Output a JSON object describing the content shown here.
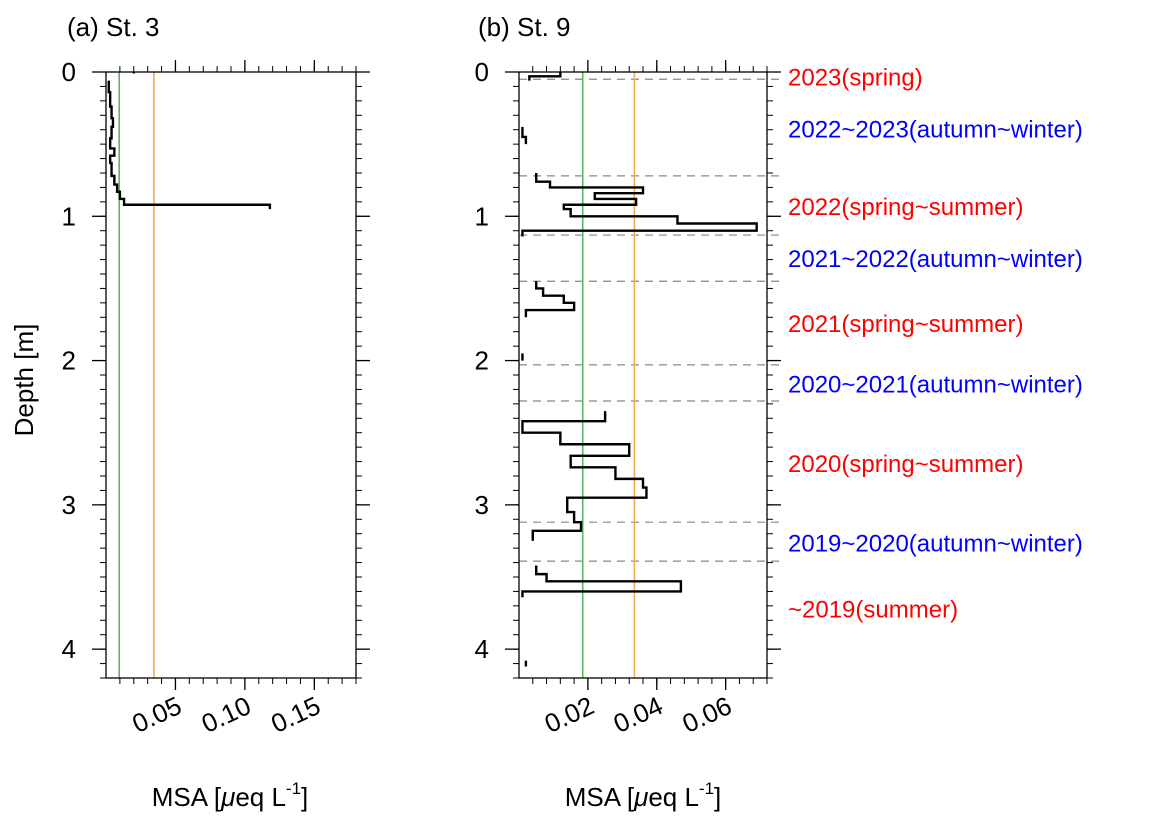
{
  "chart_data": [
    {
      "type": "line",
      "panel_title": "(a) St. 3",
      "xlabel_main": "MSA [",
      "xlabel_mu": "μ",
      "xlabel_eq": "eq L",
      "xlabel_sup": "-1",
      "xlabel_end": "]",
      "ylabel": "Depth [m]",
      "xlim": [
        0,
        0.18
      ],
      "ylim": [
        4.2,
        0
      ],
      "y_reversed": true,
      "x_ticks": [
        0.05,
        0.1,
        0.15
      ],
      "x_tick_labels": [
        "0.05",
        "0.10",
        "0.15"
      ],
      "y_ticks": [
        0,
        1,
        2,
        3,
        4
      ],
      "y_tick_labels": [
        "0",
        "1",
        "2",
        "3",
        "4"
      ],
      "reference_lines": [
        {
          "x": 0.0095,
          "color": "#5cb85c"
        },
        {
          "x": 0.0345,
          "color": "#f0ad4e"
        }
      ],
      "profile_color": "#000000",
      "profile": [
        {
          "x": 0.02,
          "y_top": 0.0,
          "y_bottom": 0.01
        },
        {
          "x": 0.002,
          "y_top": 0.06,
          "y_bottom": 0.14
        },
        {
          "x": 0.003,
          "y_top": 0.14,
          "y_bottom": 0.24
        },
        {
          "x": 0.004,
          "y_top": 0.24,
          "y_bottom": 0.32
        },
        {
          "x": 0.005,
          "y_top": 0.32,
          "y_bottom": 0.38
        },
        {
          "x": 0.004,
          "y_top": 0.38,
          "y_bottom": 0.46
        },
        {
          "x": 0.003,
          "y_top": 0.46,
          "y_bottom": 0.53
        },
        {
          "x": 0.006,
          "y_top": 0.53,
          "y_bottom": 0.58
        },
        {
          "x": 0.003,
          "y_top": 0.58,
          "y_bottom": 0.63
        },
        {
          "x": 0.004,
          "y_top": 0.63,
          "y_bottom": 0.72
        },
        {
          "x": 0.006,
          "y_top": 0.72,
          "y_bottom": 0.78
        },
        {
          "x": 0.008,
          "y_top": 0.78,
          "y_bottom": 0.83
        },
        {
          "x": 0.01,
          "y_top": 0.83,
          "y_bottom": 0.88
        },
        {
          "x": 0.013,
          "y_top": 0.88,
          "y_bottom": 0.92
        },
        {
          "x": 0.118,
          "y_top": 0.92,
          "y_bottom": 0.95
        }
      ],
      "season_boundaries": [],
      "season_labels": []
    },
    {
      "type": "line",
      "panel_title": "(b) St. 9",
      "xlabel_main": "MSA [",
      "xlabel_mu": "μ",
      "xlabel_eq": "eq L",
      "xlabel_sup": "-1",
      "xlabel_end": "]",
      "ylabel": "",
      "xlim": [
        0,
        0.072
      ],
      "ylim": [
        4.2,
        0
      ],
      "y_reversed": true,
      "x_ticks": [
        0.02,
        0.04,
        0.06
      ],
      "x_tick_labels": [
        "0.02",
        "0.04",
        "0.06"
      ],
      "y_ticks": [
        0,
        1,
        2,
        3,
        4
      ],
      "y_tick_labels": [
        "0",
        "1",
        "2",
        "3",
        "4"
      ],
      "reference_lines": [
        {
          "x": 0.0185,
          "color": "#5cb85c"
        },
        {
          "x": 0.0335,
          "color": "#f0ad4e"
        }
      ],
      "profile_color": "#000000",
      "profile": [
        {
          "x": 0.012,
          "y_top": 0.0,
          "y_bottom": 0.03
        },
        {
          "x": 0.003,
          "y_top": 0.03,
          "y_bottom": 0.06
        },
        {
          "x": 0.001,
          "y_top": 0.38,
          "y_bottom": 0.45
        },
        {
          "x": 0.002,
          "y_top": 0.45,
          "y_bottom": 0.5
        },
        {
          "x": 0.005,
          "y_top": 0.7,
          "y_bottom": 0.76
        },
        {
          "x": 0.009,
          "y_top": 0.76,
          "y_bottom": 0.8
        },
        {
          "x": 0.036,
          "y_top": 0.8,
          "y_bottom": 0.84
        },
        {
          "x": 0.022,
          "y_top": 0.84,
          "y_bottom": 0.88
        },
        {
          "x": 0.034,
          "y_top": 0.88,
          "y_bottom": 0.92
        },
        {
          "x": 0.013,
          "y_top": 0.92,
          "y_bottom": 0.95
        },
        {
          "x": 0.015,
          "y_top": 0.95,
          "y_bottom": 1.0
        },
        {
          "x": 0.046,
          "y_top": 1.0,
          "y_bottom": 1.05
        },
        {
          "x": 0.069,
          "y_top": 1.05,
          "y_bottom": 1.1
        },
        {
          "x": 0.001,
          "y_top": 1.1,
          "y_bottom": 1.14
        },
        {
          "x": 0.005,
          "y_top": 1.45,
          "y_bottom": 1.5
        },
        {
          "x": 0.007,
          "y_top": 1.5,
          "y_bottom": 1.55
        },
        {
          "x": 0.013,
          "y_top": 1.55,
          "y_bottom": 1.6
        },
        {
          "x": 0.016,
          "y_top": 1.6,
          "y_bottom": 1.65
        },
        {
          "x": 0.002,
          "y_top": 1.65,
          "y_bottom": 1.7
        },
        {
          "x": 0.001,
          "y_top": 1.95,
          "y_bottom": 2.0
        },
        {
          "x": 0.025,
          "y_top": 2.35,
          "y_bottom": 2.42
        },
        {
          "x": 0.001,
          "y_top": 2.42,
          "y_bottom": 2.5
        },
        {
          "x": 0.012,
          "y_top": 2.5,
          "y_bottom": 2.58
        },
        {
          "x": 0.032,
          "y_top": 2.58,
          "y_bottom": 2.66
        },
        {
          "x": 0.015,
          "y_top": 2.66,
          "y_bottom": 2.74
        },
        {
          "x": 0.028,
          "y_top": 2.74,
          "y_bottom": 2.82
        },
        {
          "x": 0.036,
          "y_top": 2.82,
          "y_bottom": 2.88
        },
        {
          "x": 0.037,
          "y_top": 2.88,
          "y_bottom": 2.95
        },
        {
          "x": 0.014,
          "y_top": 2.95,
          "y_bottom": 3.05
        },
        {
          "x": 0.016,
          "y_top": 3.05,
          "y_bottom": 3.12
        },
        {
          "x": 0.018,
          "y_top": 3.12,
          "y_bottom": 3.18
        },
        {
          "x": 0.004,
          "y_top": 3.18,
          "y_bottom": 3.25
        },
        {
          "x": 0.005,
          "y_top": 3.42,
          "y_bottom": 3.48
        },
        {
          "x": 0.008,
          "y_top": 3.48,
          "y_bottom": 3.53
        },
        {
          "x": 0.047,
          "y_top": 3.53,
          "y_bottom": 3.6
        },
        {
          "x": 0.001,
          "y_top": 3.6,
          "y_bottom": 3.64
        },
        {
          "x": 0.002,
          "y_top": 4.08,
          "y_bottom": 4.12
        }
      ],
      "season_boundaries": [
        0.05,
        0.72,
        1.13,
        1.45,
        2.03,
        2.28,
        3.12,
        3.39
      ],
      "season_labels": [
        {
          "text": "2023(spring)",
          "depth": 0.03,
          "color": "#ff0000"
        },
        {
          "text": "2022~2023(autumn~winter)",
          "depth": 0.39,
          "color": "#0000ff"
        },
        {
          "text": "2022(spring~summer)",
          "depth": 0.93,
          "color": "#ff0000"
        },
        {
          "text": "2021~2022(autumn~winter)",
          "depth": 1.29,
          "color": "#0000ff"
        },
        {
          "text": "2021(spring~summer)",
          "depth": 1.74,
          "color": "#ff0000"
        },
        {
          "text": "2020~2021(autumn~winter)",
          "depth": 2.16,
          "color": "#0000ff"
        },
        {
          "text": "2020(spring~summer)",
          "depth": 2.71,
          "color": "#ff0000"
        },
        {
          "text": "2019~2020(autumn~winter)",
          "depth": 3.26,
          "color": "#0000ff"
        },
        {
          "text": "~2019(summer)",
          "depth": 3.72,
          "color": "#ff0000"
        }
      ]
    }
  ]
}
